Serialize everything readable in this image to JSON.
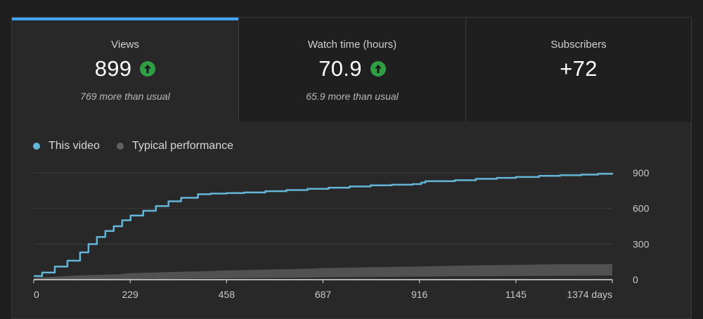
{
  "metrics": [
    {
      "title": "Views",
      "value": "899",
      "trend_icon": "arrow-up-icon",
      "subtitle": "769 more than usual",
      "active": true
    },
    {
      "title": "Watch time (hours)",
      "value": "70.9",
      "trend_icon": "arrow-up-icon",
      "subtitle": "65.9 more than usual",
      "active": false
    },
    {
      "title": "Subscribers",
      "value": "+72",
      "trend_icon": "",
      "subtitle": "",
      "active": false
    }
  ],
  "colors": {
    "accent": "#3ea6ff",
    "this_video": "#64b5d8",
    "typical": "#5f5f5f",
    "trend_up": "#2f9e44"
  },
  "legend": [
    {
      "label": "This video",
      "color": "#64b5d8"
    },
    {
      "label": "Typical performance",
      "color": "#5f5f5f"
    }
  ],
  "chart_data": {
    "type": "line",
    "x_ticks": [
      "0",
      "229",
      "458",
      "687",
      "916",
      "1145",
      "1374 days"
    ],
    "y_ticks": [
      "0",
      "300",
      "600",
      "900"
    ],
    "xlim": [
      0,
      1374
    ],
    "ylim": [
      0,
      900
    ],
    "grid": true,
    "series": [
      {
        "name": "This video",
        "x": [
          0,
          20,
          50,
          80,
          110,
          130,
          150,
          170,
          190,
          210,
          230,
          260,
          290,
          320,
          350,
          390,
          420,
          458,
          500,
          550,
          600,
          650,
          700,
          750,
          800,
          850,
          900,
          920,
          930,
          1000,
          1050,
          1100,
          1145,
          1200,
          1250,
          1300,
          1340,
          1374
        ],
        "y": [
          30,
          60,
          110,
          160,
          230,
          300,
          360,
          410,
          450,
          500,
          540,
          580,
          620,
          660,
          690,
          720,
          725,
          730,
          735,
          745,
          755,
          765,
          775,
          785,
          795,
          800,
          805,
          818,
          830,
          838,
          850,
          858,
          865,
          875,
          880,
          885,
          892,
          899
        ]
      },
      {
        "name": "Typical performance",
        "type": "area",
        "x": [
          0,
          100,
          200,
          229,
          300,
          400,
          458,
          550,
          650,
          687,
          800,
          916,
          1000,
          1145,
          1250,
          1374
        ],
        "low": [
          0,
          0,
          5,
          5,
          8,
          10,
          12,
          15,
          18,
          20,
          22,
          25,
          28,
          30,
          32,
          35
        ],
        "high": [
          15,
          35,
          45,
          55,
          62,
          70,
          78,
          85,
          92,
          98,
          105,
          110,
          118,
          125,
          130,
          130
        ]
      }
    ]
  }
}
